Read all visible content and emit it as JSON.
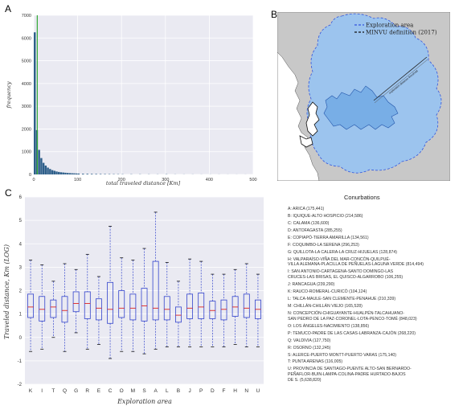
{
  "panels": {
    "a": "A",
    "b": "B",
    "c": "C"
  },
  "histogram": {
    "type": "bar",
    "xlabel": "total traveled distance [Km]",
    "ylabel": "frequency",
    "xlim": [
      0,
      500
    ],
    "ylim": [
      0,
      7000
    ],
    "x_ticks": [
      "0",
      "100",
      "200",
      "300",
      "400",
      "500"
    ],
    "y_ticks": [
      "0",
      "1000",
      "2000",
      "3000",
      "4000",
      "5000",
      "6000",
      "7000"
    ],
    "bin_width_km": 5,
    "bin_start_km": [
      0,
      5,
      10,
      15,
      20,
      25,
      30,
      35,
      40,
      45,
      50,
      55,
      60,
      65,
      70,
      75,
      80,
      85,
      90,
      95,
      100,
      110,
      120,
      130,
      140,
      150,
      160,
      170,
      180,
      190,
      200,
      220,
      240,
      260,
      280,
      300,
      320,
      340,
      360,
      380,
      400,
      420,
      440,
      460,
      480
    ],
    "values": [
      6250,
      1950,
      1080,
      720,
      510,
      390,
      300,
      240,
      190,
      160,
      130,
      110,
      95,
      85,
      75,
      65,
      58,
      52,
      47,
      42,
      38,
      32,
      28,
      25,
      22,
      19,
      17,
      15,
      13,
      12,
      10,
      9,
      8,
      7,
      6,
      10,
      5,
      4,
      4,
      3,
      3,
      3,
      2,
      2,
      2
    ],
    "vline_color": "#33aa33",
    "bar_color": "#2e5f8a"
  },
  "map": {
    "legend": [
      {
        "label": "Exploration area",
        "color": "#3355dd",
        "style": "dashed"
      },
      {
        "label": "MINVU definition (2017)",
        "color": "#111111",
        "style": "dashed"
      }
    ],
    "scale_label": "exploration distance threshold",
    "colors": {
      "land": "#c8c8c8",
      "exploration_fill": "#9cc4ee",
      "urban_fill": "#78aee6",
      "sea": "#ffffff"
    }
  },
  "boxplot": {
    "type": "box",
    "xlabel": "Exploration area",
    "ylabel": "Traveled distance, Km (LOG)",
    "ylim": [
      -2,
      6
    ],
    "y_ticks": [
      "-2",
      "-1",
      "0",
      "1",
      "2",
      "3",
      "4",
      "5",
      "6"
    ],
    "categories": [
      "K",
      "I",
      "T",
      "Q",
      "G",
      "R",
      "E",
      "C",
      "O",
      "M",
      "S",
      "A",
      "L",
      "B",
      "J",
      "P",
      "D",
      "F",
      "H",
      "N",
      "U"
    ],
    "boxes": [
      {
        "whislo": -0.6,
        "q1": 0.85,
        "med": 1.3,
        "q3": 1.85,
        "whishi": 3.3
      },
      {
        "whislo": -0.5,
        "q1": 0.7,
        "med": 1.2,
        "q3": 1.75,
        "whishi": 3.1
      },
      {
        "whislo": 0.0,
        "q1": 0.85,
        "med": 1.3,
        "q3": 1.6,
        "whishi": 2.4
      },
      {
        "whislo": -0.6,
        "q1": 0.65,
        "med": 1.15,
        "q3": 1.75,
        "whishi": 3.15
      },
      {
        "whislo": 0.2,
        "q1": 1.1,
        "med": 1.45,
        "q3": 1.95,
        "whishi": 2.9
      },
      {
        "whislo": -0.5,
        "q1": 0.8,
        "med": 1.45,
        "q3": 1.95,
        "whishi": 3.55
      },
      {
        "whislo": -0.3,
        "q1": 0.75,
        "med": 1.25,
        "q3": 1.65,
        "whishi": 2.6
      },
      {
        "whislo": -0.9,
        "q1": 0.6,
        "med": 1.2,
        "q3": 2.35,
        "whishi": 4.75
      },
      {
        "whislo": -0.6,
        "q1": 0.85,
        "med": 1.25,
        "q3": 2.0,
        "whishi": 3.4
      },
      {
        "whislo": -0.6,
        "q1": 0.75,
        "med": 1.25,
        "q3": 1.85,
        "whishi": 3.3
      },
      {
        "whislo": -0.7,
        "q1": 0.7,
        "med": 1.35,
        "q3": 2.1,
        "whishi": 3.8
      },
      {
        "whislo": -0.5,
        "q1": 0.75,
        "med": 1.25,
        "q3": 3.25,
        "whishi": 5.35
      },
      {
        "whislo": -0.4,
        "q1": 0.75,
        "med": 1.2,
        "q3": 1.75,
        "whishi": 3.2
      },
      {
        "whislo": -0.4,
        "q1": 0.65,
        "med": 0.95,
        "q3": 1.3,
        "whishi": 2.4
      },
      {
        "whislo": -0.4,
        "q1": 0.8,
        "med": 1.25,
        "q3": 1.85,
        "whishi": 3.35
      },
      {
        "whislo": -0.4,
        "q1": 0.8,
        "med": 1.3,
        "q3": 1.9,
        "whishi": 3.25
      },
      {
        "whislo": -0.4,
        "q1": 0.8,
        "med": 1.15,
        "q3": 1.55,
        "whishi": 2.7
      },
      {
        "whislo": -0.4,
        "q1": 0.75,
        "med": 1.2,
        "q3": 1.6,
        "whishi": 2.7
      },
      {
        "whislo": -0.3,
        "q1": 0.9,
        "med": 1.3,
        "q3": 1.75,
        "whishi": 2.9
      },
      {
        "whislo": -0.4,
        "q1": 0.85,
        "med": 1.25,
        "q3": 1.85,
        "whishi": 3.15
      },
      {
        "whislo": -0.4,
        "q1": 0.8,
        "med": 1.2,
        "q3": 1.6,
        "whishi": 2.7
      }
    ],
    "box_color": "#3344cc",
    "median_color": "#dd2222"
  },
  "conurbations": {
    "title": "Conurbations",
    "items": [
      "A: ARICA (175,441)",
      "B: IQUIQUE-ALTO HOSPICIO (214,586)",
      "C: CALAMA (136,600)",
      "D: ANTOFAGASTA (285,255)",
      "E: COPIAPÓ-TIERRA AMARILLA (134,561)",
      "F: COQUIMBO-LA SERENA (296,253)",
      "G: QUILLOTA-LA CALERA-LA CRUZ-HIJUELAS (128,874)",
      "H: VALPARAÍSO-VIÑA DEL MAR-CONCÓN-QUILPUÉ-\nVILLA ALEMANA-PLACILLA DE PEÑUELAS-LAGUNA VERDE (814,494)",
      "I: SAN ANTONIO-CARTAGENA-SANTO DOMINGO-LAS\nCRUCES-LAS BRISAS, EL QUISCO-ALGARROBO (106,255)",
      "J: RANCAGUA (239,290)",
      "K: RAUCO-ROMERAL-CURICÓ (104,124)",
      "L: TALCA-MAULE-SAN CLEMENTE-PENAHUE (210,339)",
      "M: CHILLÁN-CHILLÁN VIEJO (165,528)",
      "N: CONCEPCIÓN-CHIGUAYANTE-HUALPÉN-TALCAHUANO-\nSAN PEDRO DE LA PAZ-CORONEL-LOTA-PENCO-TOMÉ (848,023)",
      "O: LOS ÁNGELES-NACIMIENTO (138,856)",
      "P: TEMUCO-PADRE DE LAS CASAS-LABRANZA-CAJÓN (268,220)",
      "Q: VALDIVIA (127,750)",
      "R: OSORNO (132,245)",
      "S: ALERCE-PUERTO MONTT-PUERTO VARAS (175,140)",
      "T: PUNTA ARENAS (116,005)",
      "U: PROVINCIA DE SANTIAGO-PUENTE ALTO-SAN BERNARDO-\nPEÑAFLOR-BUIN-LAMPA-COLINA-PADRE HURTADO-BAJOS\nDE S. (5,638,820)"
    ]
  }
}
